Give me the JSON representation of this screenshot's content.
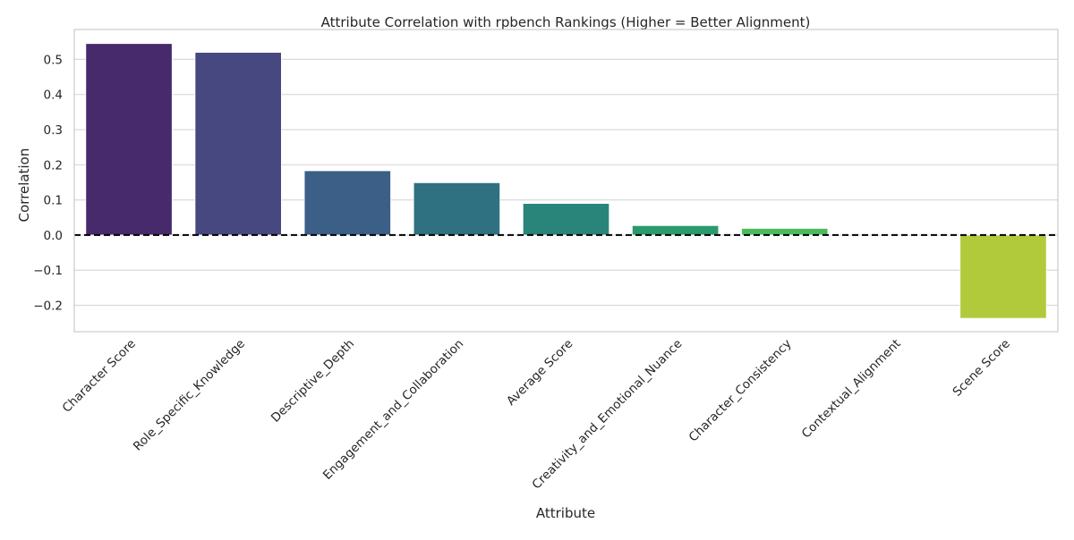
{
  "chart_data": {
    "type": "bar",
    "title": "Attribute Correlation with rpbench Rankings (Higher = Better Alignment)",
    "xlabel": "Attribute",
    "ylabel": "Correlation",
    "categories": [
      "Character Score",
      "Role_Specific_Knowledge",
      "Descriptive_Depth",
      "Engagement_and_Collaboration",
      "Average Score",
      "Creativity_and_Emotional_Nuance",
      "Character_Consistency",
      "Contextual_Alignment",
      "Scene Score"
    ],
    "values": [
      0.545,
      0.52,
      0.183,
      0.149,
      0.09,
      0.027,
      0.019,
      0.0,
      -0.237
    ],
    "colors": [
      "#472a6b",
      "#46487f",
      "#3b5f86",
      "#2f7180",
      "#29847a",
      "#2a9a6e",
      "#4bbc5e",
      "#8ecf3c",
      "#b1ca3b"
    ],
    "ylim": [
      -0.275,
      0.585
    ],
    "yticks": [
      -0.2,
      -0.1,
      0.0,
      0.1,
      0.2,
      0.3,
      0.4,
      0.5
    ],
    "ytick_labels": [
      "−0.2",
      "−0.1",
      "0.0",
      "0.1",
      "0.2",
      "0.3",
      "0.4",
      "0.5"
    ],
    "reference_line": {
      "y": 0.0,
      "style": "dashed",
      "color": "#000000"
    },
    "grid": "horizontal",
    "legend": "none"
  }
}
